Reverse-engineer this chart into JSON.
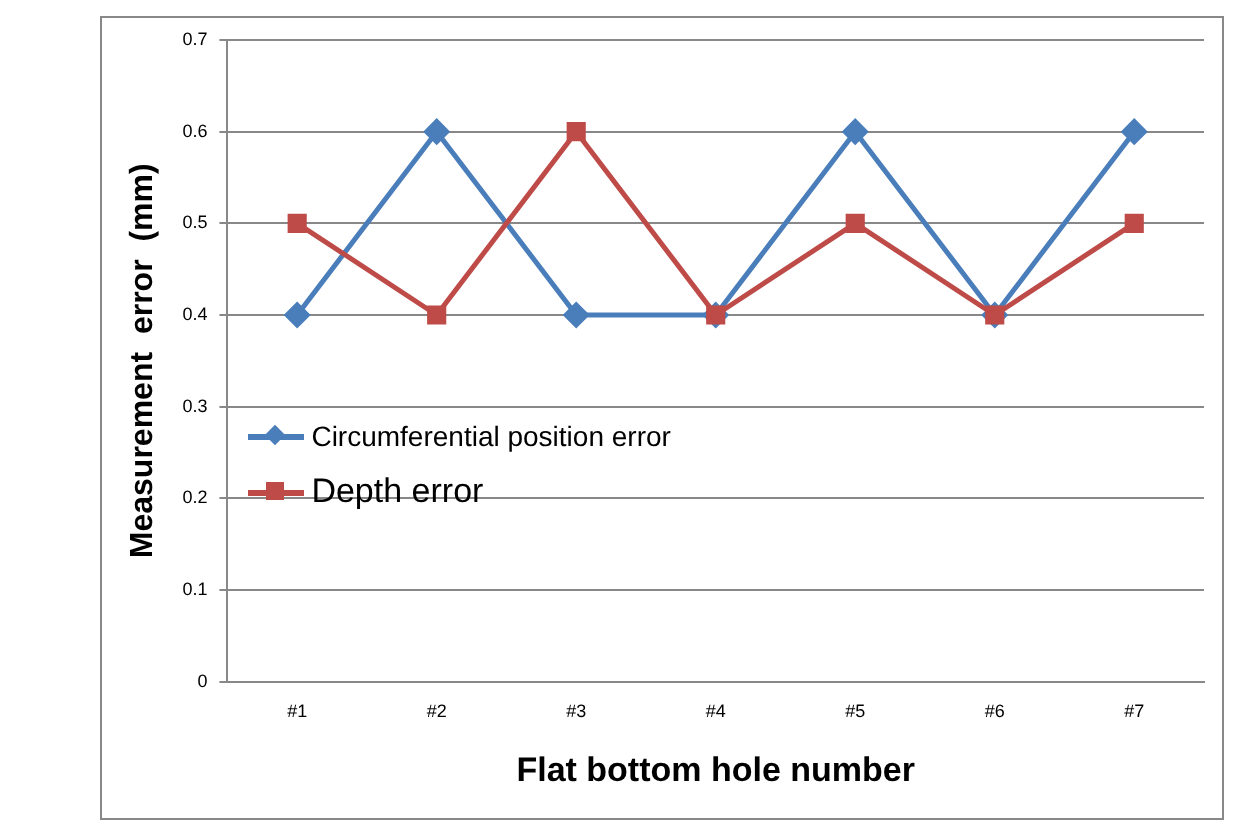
{
  "chart_data": {
    "type": "line",
    "xlabel": "Flat bottom hole number",
    "ylabel": "Measurement  error  (mm)",
    "categories": [
      "#1",
      "#2",
      "#3",
      "#4",
      "#5",
      "#6",
      "#7"
    ],
    "series": [
      {
        "name": "Circumferential position error",
        "color": "#4a7ebb",
        "marker": "diamond",
        "values": [
          0.4,
          0.6,
          0.4,
          0.4,
          0.6,
          0.4,
          0.6
        ]
      },
      {
        "name": "Depth error",
        "color": "#be4b48",
        "marker": "square",
        "values": [
          0.5,
          0.4,
          0.6,
          0.4,
          0.5,
          0.4,
          0.5
        ]
      }
    ],
    "ylim": [
      0,
      0.7
    ],
    "yticks": [
      0,
      0.1,
      0.2,
      0.3,
      0.4,
      0.5,
      0.6,
      0.7
    ],
    "grid": "y",
    "legend": "left",
    "line_style": "solid"
  }
}
